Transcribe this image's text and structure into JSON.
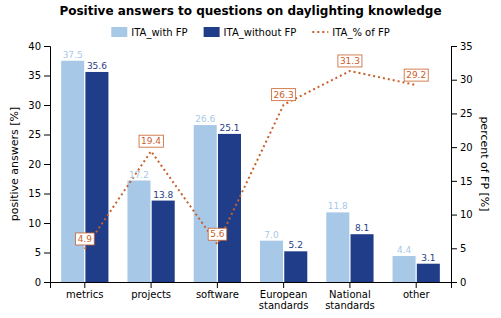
{
  "chart_data": {
    "type": "bar",
    "title": "Positive answers to questions on daylighting knowledge",
    "categories": [
      "metrics",
      "projects",
      "software",
      "European\nstandards",
      "National\nstandards",
      "other"
    ],
    "series": [
      {
        "name": "ITA_with FP",
        "color": "#a8c8e8",
        "values": [
          37.5,
          17.2,
          26.6,
          7.0,
          11.8,
          4.4
        ],
        "value_labels": [
          "37.5",
          "17.2",
          "26.6",
          "7.0",
          "11.8",
          "4.4"
        ]
      },
      {
        "name": "ITA_without FP",
        "color": "#1f3d88",
        "values": [
          35.6,
          13.8,
          25.1,
          5.2,
          8.1,
          3.1
        ]
      },
      {
        "name": "ITA_% of FP",
        "type": "line",
        "axis": "y2",
        "line_style": "dotted",
        "color": "#c8602a",
        "values": [
          4.9,
          19.4,
          5.6,
          26.3,
          31.3,
          29.2
        ]
      }
    ],
    "ylabel": "positive answers [%]",
    "y2label": "percent of FP [%]",
    "ylim": [
      0,
      40
    ],
    "yticks": [
      0,
      5,
      10,
      15,
      20,
      25,
      30,
      35,
      40
    ],
    "y2lim": [
      0,
      35
    ],
    "y2ticks": [
      0,
      5,
      10,
      15,
      20,
      25,
      30,
      35
    ],
    "data_labels": true,
    "grid": false,
    "legend": "top"
  }
}
